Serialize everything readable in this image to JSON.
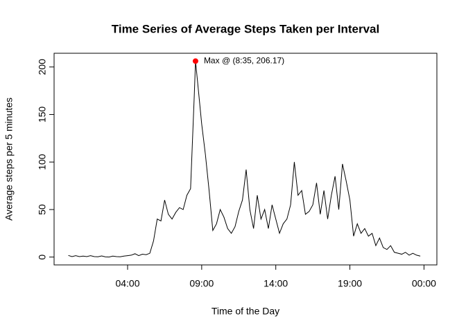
{
  "chart_data": {
    "type": "line",
    "title": "Time Series of Average Steps Taken per Interval",
    "xlabel": "Time of the Day",
    "ylabel": "Average steps per 5 minutes",
    "x": [
      0,
      0.25,
      0.5,
      0.75,
      1,
      1.25,
      1.5,
      1.75,
      2,
      2.25,
      2.5,
      2.75,
      3,
      3.25,
      3.5,
      3.75,
      4,
      4.25,
      4.5,
      4.75,
      5,
      5.25,
      5.5,
      5.75,
      6,
      6.25,
      6.5,
      6.75,
      7,
      7.25,
      7.5,
      7.75,
      8,
      8.25,
      8.5,
      8.5833,
      8.75,
      9,
      9.25,
      9.5,
      9.75,
      10,
      10.25,
      10.5,
      10.75,
      11,
      11.25,
      11.5,
      11.75,
      12,
      12.25,
      12.5,
      12.75,
      13,
      13.25,
      13.5,
      13.75,
      14,
      14.25,
      14.5,
      14.75,
      15,
      15.25,
      15.5,
      15.75,
      16,
      16.25,
      16.5,
      16.75,
      17,
      17.25,
      17.5,
      17.75,
      18,
      18.25,
      18.5,
      18.75,
      19,
      19.25,
      19.5,
      19.75,
      20,
      20.25,
      20.5,
      20.75,
      21,
      21.25,
      21.5,
      21.75,
      22,
      22.25,
      22.5,
      22.75,
      23,
      23.25,
      23.5,
      23.75
    ],
    "series": [
      {
        "name": "Average steps",
        "color": "#000000",
        "values": [
          1.7,
          0.5,
          1.5,
          0.5,
          1,
          0.5,
          1.5,
          0.5,
          0.3,
          1.2,
          0.2,
          0,
          1,
          0.5,
          0.3,
          1,
          1.5,
          2,
          3.5,
          1.5,
          3,
          2.5,
          4,
          17,
          40,
          38,
          60,
          45,
          40,
          47,
          52,
          50,
          65,
          72,
          170,
          206.17,
          180,
          140,
          108,
          70,
          28,
          35,
          50,
          42,
          30,
          25,
          32,
          48,
          60,
          92,
          50,
          30,
          65,
          40,
          50,
          30,
          55,
          40,
          25,
          35,
          40,
          55,
          100,
          65,
          70,
          45,
          48,
          55,
          78,
          45,
          70,
          40,
          65,
          85,
          50,
          98,
          80,
          60,
          22,
          35,
          25,
          30,
          22,
          25,
          12,
          20,
          10,
          8,
          12,
          5,
          4,
          3,
          5,
          2,
          4,
          2,
          1
        ]
      }
    ],
    "max_point": {
      "x": 8.5833,
      "y": 206.17,
      "label": "Max @ (8:35, 206.17)",
      "color": "#ff0000"
    },
    "xlim": [
      -0.96,
      24.87
    ],
    "ylim": [
      -8.25,
      214.42
    ],
    "xticks": [
      {
        "value": 4,
        "label": "04:00"
      },
      {
        "value": 9,
        "label": "09:00"
      },
      {
        "value": 14,
        "label": "14:00"
      },
      {
        "value": 19,
        "label": "19:00"
      },
      {
        "value": 24,
        "label": "00:00"
      }
    ],
    "yticks": [
      0,
      50,
      100,
      150,
      200
    ]
  }
}
